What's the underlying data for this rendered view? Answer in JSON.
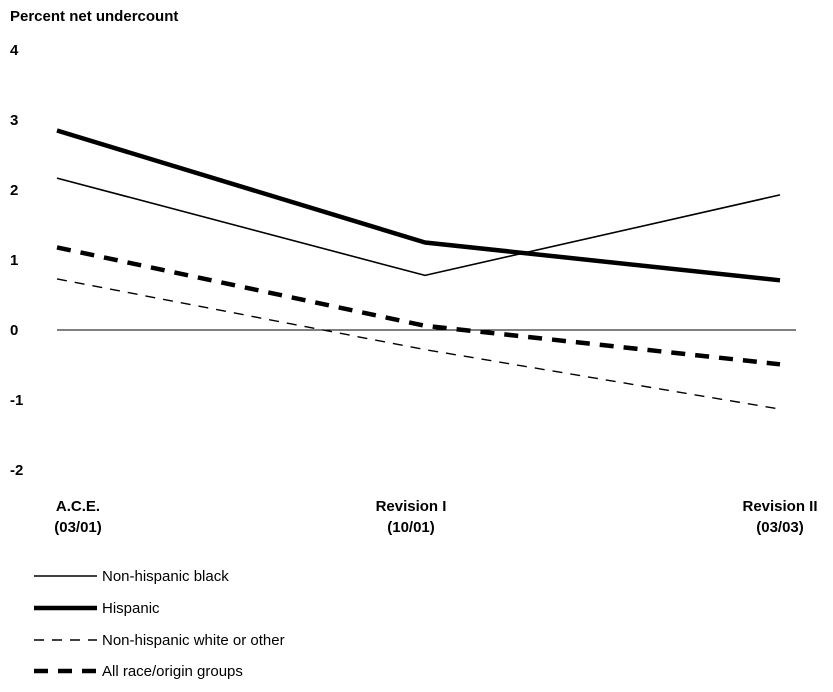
{
  "chart_data": {
    "type": "line",
    "title": "Percent net undercount",
    "ylabel": "",
    "xlabel": "",
    "ylim": [
      -2,
      4
    ],
    "yticks": [
      "4",
      "3",
      "2",
      "1",
      "0",
      "-1",
      "-2"
    ],
    "categories": [
      {
        "line1": "A.C.E.",
        "line2": "(03/01)"
      },
      {
        "line1": "Revision I",
        "line2": "(10/01)"
      },
      {
        "line1": "Revision II",
        "line2": "(03/03)"
      }
    ],
    "series": [
      {
        "name": "Non-hispanic black",
        "values": [
          2.17,
          0.78,
          1.93
        ],
        "style": "thin-solid"
      },
      {
        "name": "Hispanic",
        "values": [
          2.85,
          1.25,
          0.71
        ],
        "style": "thick-solid"
      },
      {
        "name": "Non-hispanic white or other",
        "values": [
          0.73,
          -0.28,
          -1.13
        ],
        "style": "thin-dashed"
      },
      {
        "name": "All race/origin groups",
        "values": [
          1.18,
          0.06,
          -0.49
        ],
        "style": "thick-dashed"
      }
    ],
    "zero_line": true,
    "grid": false,
    "legend_position": "bottom-left"
  }
}
